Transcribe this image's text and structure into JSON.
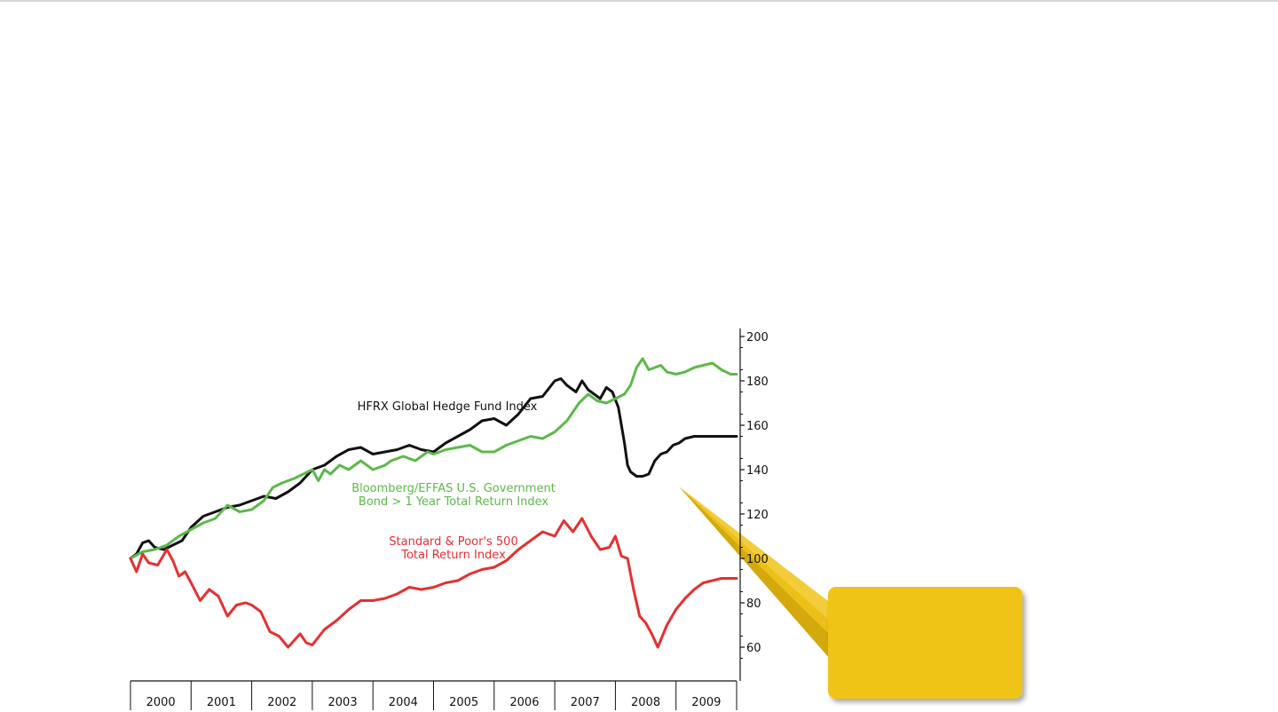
{
  "chart_data": {
    "type": "line",
    "title": "",
    "xlabel": "",
    "ylabel": "",
    "x_range": [
      2000.0,
      2010.0
    ],
    "ylim": [
      50,
      205
    ],
    "y_ticks": [
      60,
      80,
      100,
      120,
      140,
      160,
      180,
      200
    ],
    "year_labels": [
      "2000",
      "2001",
      "2002",
      "2003",
      "2004",
      "2005",
      "2006",
      "2007",
      "2008",
      "2009"
    ],
    "grid": false,
    "y_axis_position": "right",
    "annotations": [
      {
        "lines": [
          "HFRX Global Hedge Fund Index"
        ],
        "color": "#111111"
      },
      {
        "lines": [
          "Bloomberg/EFFAS U.S. Government",
          "Bond > 1 Year Total Return Index"
        ],
        "color": "#5db94a"
      },
      {
        "lines": [
          "Standard & Poor's 500",
          "Total Return Index"
        ],
        "color": "#e53030"
      }
    ],
    "callout_color": "#f0c419",
    "series": [
      {
        "name": "HFRX Global Hedge Fund Index",
        "color": "#111111",
        "x": [
          2000.0,
          2000.1,
          2000.2,
          2000.3,
          2000.4,
          2000.55,
          2000.7,
          2000.85,
          2001.0,
          2001.2,
          2001.4,
          2001.6,
          2001.8,
          2002.0,
          2002.2,
          2002.4,
          2002.6,
          2002.8,
          2003.0,
          2003.2,
          2003.4,
          2003.6,
          2003.8,
          2004.0,
          2004.2,
          2004.4,
          2004.6,
          2004.8,
          2005.0,
          2005.2,
          2005.4,
          2005.6,
          2005.8,
          2006.0,
          2006.2,
          2006.4,
          2006.6,
          2006.8,
          2007.0,
          2007.1,
          2007.2,
          2007.3,
          2007.35,
          2007.45,
          2007.55,
          2007.65,
          2007.75,
          2007.85,
          2007.95,
          2008.05,
          2008.15,
          2008.2,
          2008.25,
          2008.35,
          2008.45,
          2008.55,
          2008.65,
          2008.75,
          2008.85,
          2008.95,
          2009.05,
          2009.15,
          2009.3,
          2009.45,
          2009.6,
          2009.75,
          2009.9,
          2010.0
        ],
        "values": [
          100,
          102,
          107,
          108,
          105,
          104,
          106,
          108,
          114,
          119,
          121,
          123,
          124,
          126,
          128,
          127,
          130,
          134,
          140,
          142,
          146,
          149,
          150,
          147,
          148,
          149,
          151,
          149,
          148,
          152,
          155,
          158,
          162,
          163,
          160,
          165,
          172,
          173,
          180,
          181,
          178,
          176,
          175,
          180,
          176,
          174,
          172,
          177,
          175,
          168,
          152,
          142,
          139,
          137,
          137,
          138,
          144,
          147,
          148,
          151,
          152,
          154,
          155,
          155,
          155,
          155,
          155,
          155
        ]
      },
      {
        "name": "Bloomberg/EFFAS U.S. Government Bond > 1 Year Total Return Index",
        "color": "#5db94a",
        "x": [
          2000.0,
          2000.2,
          2000.4,
          2000.6,
          2000.8,
          2001.0,
          2001.2,
          2001.4,
          2001.6,
          2001.8,
          2002.0,
          2002.2,
          2002.35,
          2002.5,
          2002.7,
          2002.85,
          2003.0,
          2003.1,
          2003.2,
          2003.3,
          2003.45,
          2003.6,
          2003.8,
          2004.0,
          2004.2,
          2004.3,
          2004.5,
          2004.7,
          2004.9,
          2005.0,
          2005.2,
          2005.4,
          2005.6,
          2005.8,
          2006.0,
          2006.2,
          2006.4,
          2006.6,
          2006.8,
          2007.0,
          2007.2,
          2007.4,
          2007.55,
          2007.7,
          2007.85,
          2008.0,
          2008.15,
          2008.25,
          2008.35,
          2008.45,
          2008.55,
          2008.65,
          2008.75,
          2008.85,
          2009.0,
          2009.15,
          2009.3,
          2009.45,
          2009.6,
          2009.75,
          2009.9,
          2010.0
        ],
        "values": [
          100,
          103,
          104,
          106,
          110,
          113,
          116,
          118,
          124,
          121,
          122,
          126,
          132,
          134,
          136,
          138,
          140,
          135,
          140,
          138,
          142,
          140,
          144,
          140,
          142,
          144,
          146,
          144,
          148,
          147,
          149,
          150,
          151,
          148,
          148,
          151,
          153,
          155,
          154,
          157,
          162,
          170,
          174,
          171,
          170,
          172,
          174,
          178,
          186,
          190,
          185,
          186,
          187,
          184,
          183,
          184,
          186,
          187,
          188,
          185,
          183,
          183
        ]
      },
      {
        "name": "Standard & Poor's 500 Total Return Index",
        "color": "#e53030",
        "x": [
          2000.0,
          2000.1,
          2000.2,
          2000.3,
          2000.45,
          2000.6,
          2000.7,
          2000.8,
          2000.9,
          2001.0,
          2001.15,
          2001.3,
          2001.45,
          2001.6,
          2001.75,
          2001.9,
          2002.0,
          2002.15,
          2002.3,
          2002.45,
          2002.6,
          2002.7,
          2002.8,
          2002.9,
          2003.0,
          2003.2,
          2003.4,
          2003.6,
          2003.8,
          2004.0,
          2004.2,
          2004.4,
          2004.6,
          2004.8,
          2005.0,
          2005.2,
          2005.4,
          2005.6,
          2005.8,
          2006.0,
          2006.2,
          2006.4,
          2006.6,
          2006.8,
          2007.0,
          2007.15,
          2007.3,
          2007.45,
          2007.6,
          2007.75,
          2007.9,
          2008.0,
          2008.1,
          2008.2,
          2008.3,
          2008.4,
          2008.5,
          2008.6,
          2008.7,
          2008.85,
          2009.0,
          2009.15,
          2009.3,
          2009.45,
          2009.6,
          2009.75,
          2009.9,
          2010.0
        ],
        "values": [
          100,
          94,
          102,
          98,
          97,
          104,
          99,
          92,
          94,
          89,
          81,
          86,
          83,
          74,
          79,
          80,
          79,
          76,
          67,
          65,
          60,
          63,
          66,
          62,
          61,
          68,
          72,
          77,
          81,
          81,
          82,
          84,
          87,
          86,
          87,
          89,
          90,
          93,
          95,
          96,
          99,
          104,
          108,
          112,
          110,
          117,
          112,
          118,
          110,
          104,
          105,
          110,
          101,
          100,
          86,
          74,
          71,
          66,
          60,
          70,
          77,
          82,
          86,
          89,
          90,
          91,
          91,
          91
        ]
      }
    ]
  }
}
